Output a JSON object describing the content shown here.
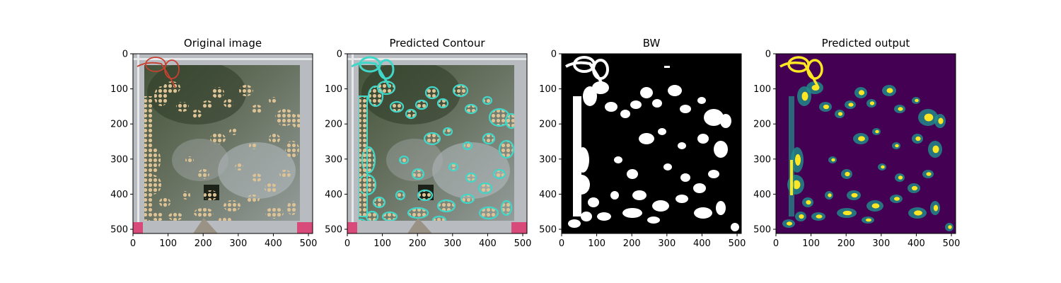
{
  "panels": [
    {
      "title": "Original image",
      "style": "photo",
      "ticks": [
        "0",
        "100",
        "200",
        "300",
        "400",
        "500"
      ],
      "yticks": [
        "0",
        "100",
        "200",
        "300",
        "400",
        "500"
      ]
    },
    {
      "title": "Predicted Contour",
      "style": "contour",
      "ticks": [
        "0",
        "100",
        "200",
        "300",
        "400",
        "500"
      ],
      "yticks": [
        "0",
        "100",
        "200",
        "300",
        "400",
        "500"
      ]
    },
    {
      "title": "BW",
      "style": "bw",
      "ticks": [
        "0",
        "100",
        "200",
        "300",
        "400",
        "500"
      ],
      "yticks": [
        "0",
        "100",
        "200",
        "300",
        "400",
        "500"
      ]
    },
    {
      "title": "Predicted output",
      "style": "heat",
      "ticks": [
        "0",
        "100",
        "200",
        "300",
        "400",
        "500"
      ],
      "yticks": [
        "0",
        "100",
        "200",
        "300",
        "400",
        "500"
      ]
    }
  ],
  "colors": {
    "water": "#56684a",
    "frame": "#b8bcc0",
    "foam": "#d6b98a",
    "contour": "#40d6c8",
    "heat_bg": "#440154",
    "heat_hi": "#fde725",
    "heat_mid": "#21918c"
  }
}
